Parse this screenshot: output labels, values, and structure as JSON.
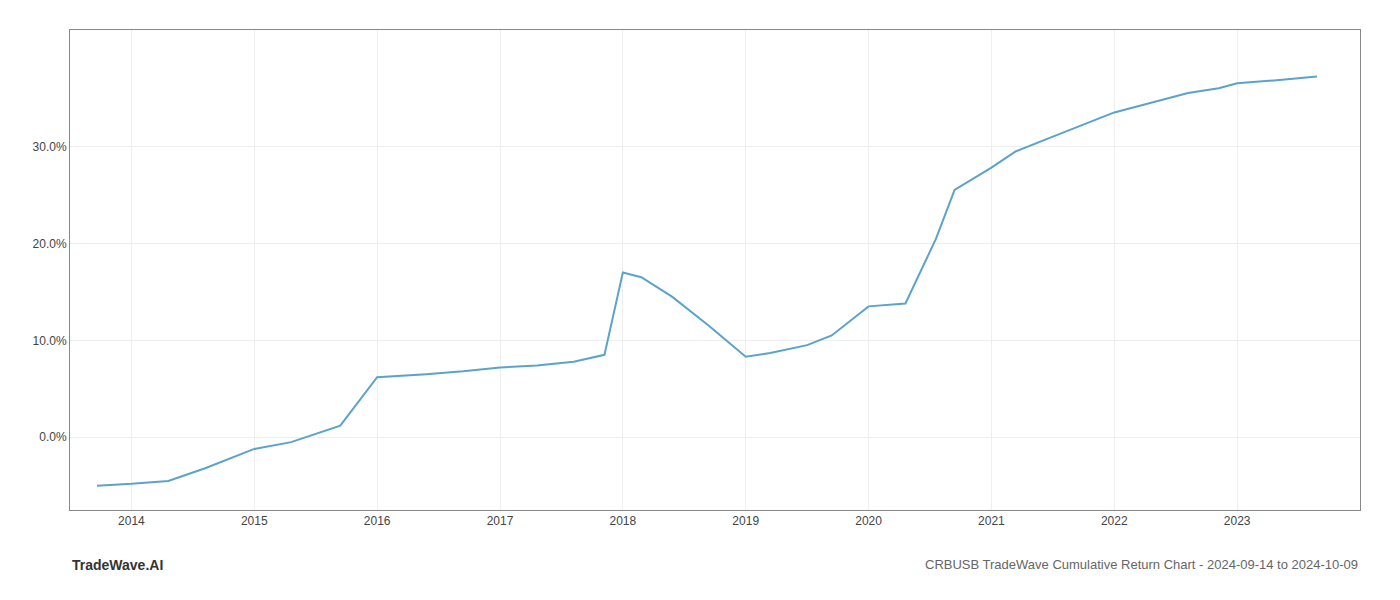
{
  "chart_data": {
    "type": "line",
    "title": "CRBUSB TradeWave Cumulative Return Chart - 2024-09-14 to 2024-10-09",
    "annotations": [
      "TradeWave.AI"
    ],
    "color": "#5ba3c9",
    "grid": true,
    "x": [
      2013.72,
      2014.0,
      2014.3,
      2014.6,
      2015.0,
      2015.3,
      2015.7,
      2016.0,
      2016.4,
      2016.7,
      2017.0,
      2017.3,
      2017.6,
      2017.85,
      2018.0,
      2018.15,
      2018.4,
      2018.7,
      2019.0,
      2019.2,
      2019.5,
      2019.7,
      2020.0,
      2020.3,
      2020.55,
      2020.7,
      2021.0,
      2021.2,
      2021.5,
      2021.8,
      2022.0,
      2022.3,
      2022.6,
      2022.85,
      2023.0,
      2023.3,
      2023.65
    ],
    "values": [
      -5.0,
      -4.8,
      -4.5,
      -3.2,
      -1.2,
      -0.5,
      1.2,
      6.2,
      6.5,
      6.8,
      7.2,
      7.4,
      7.8,
      8.5,
      17.0,
      16.5,
      14.5,
      11.5,
      8.3,
      8.7,
      9.5,
      10.5,
      13.5,
      13.8,
      20.5,
      25.5,
      27.8,
      29.5,
      31.0,
      32.5,
      33.5,
      34.5,
      35.5,
      36.0,
      36.5,
      36.8,
      37.2
    ],
    "xlim": [
      2013.5,
      2024.0
    ],
    "xticks": [
      2014,
      2015,
      2016,
      2017,
      2018,
      2019,
      2020,
      2021,
      2022,
      2023
    ],
    "ylim": [
      -7.5,
      42
    ],
    "yticks": [
      {
        "value": 0,
        "label": "0.0%"
      },
      {
        "value": 10,
        "label": "10.0%"
      },
      {
        "value": 20,
        "label": "20.0%"
      },
      {
        "value": 30,
        "label": "30.0%"
      }
    ]
  }
}
